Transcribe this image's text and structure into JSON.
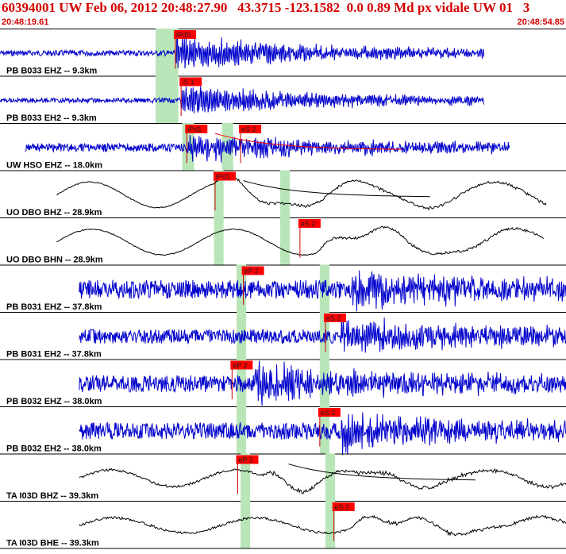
{
  "header": {
    "title": "60394001 UW Feb 06, 2012 20:48:27.90   43.3715 -123.1582  0.0 0.89 Md px vidale UW 01   3",
    "start_time": "20:48:19.61",
    "end_time": "20:48:54.85"
  },
  "colors": {
    "header_text": "#d40000",
    "pick_flag": "#ff0000",
    "window_shade": "#b8e6b8",
    "broadband_trace": "#000000",
    "shortperiod_trace": "#0000cc"
  },
  "traces": [
    {
      "label": "PB B033 EHZ -- 9.3km",
      "kind": "sp",
      "start": 0.0,
      "end": 0.855,
      "onset": 0.31,
      "pick": {
        "text": "iPd0",
        "at": 0.31
      },
      "amp": 0.78,
      "freq": 95,
      "noise": 0.06,
      "shade": [
        0.275,
        0.315
      ]
    },
    {
      "label": "PB B033 EH2 -- 9.3km",
      "kind": "sp",
      "start": 0.0,
      "end": 0.855,
      "onset": 0.32,
      "pick": {
        "text": "iS 1",
        "at": 0.32
      },
      "amp": 0.72,
      "freq": 95,
      "noise": 0.05,
      "shade": [
        0.275,
        0.315
      ]
    },
    {
      "label": "UW HSO EHZ -- 18.0km",
      "kind": "sp",
      "start": 0.045,
      "end": 0.9,
      "onset": 0.33,
      "pick": {
        "text": "iPd1",
        "at": 0.33
      },
      "pick2": {
        "text": "eS 2",
        "at": 0.425
      },
      "amp": 0.55,
      "freq": 70,
      "noise": 0.09,
      "shade": [
        0.322,
        0.343
      ],
      "shade2": [
        0.392,
        0.412
      ],
      "coda": true
    },
    {
      "label": "UO DBO BHZ -- 28.9km",
      "kind": "bb",
      "start": 0.1,
      "end": 0.965,
      "onset": 0.38,
      "pick": {
        "text": "iPd1",
        "at": 0.38
      },
      "amp": 0.85,
      "freq": 4.2,
      "noise": 0.02,
      "shade": [
        0.378,
        0.395
      ],
      "shade2": [
        0.495,
        0.512
      ],
      "coda": true
    },
    {
      "label": "UO DBO BHN -- 28.9km",
      "kind": "bb",
      "start": 0.1,
      "end": 0.96,
      "onset": 0.56,
      "pick": {
        "text": "eS 2",
        "at": 0.53
      },
      "amp": 0.85,
      "freq": 4.0,
      "noise": 0.02,
      "shade": [
        0.378,
        0.395
      ],
      "shade2": [
        0.495,
        0.512
      ]
    },
    {
      "label": "PB B031 EHZ -- 37.8km",
      "kind": "sp",
      "start": 0.14,
      "end": 1.0,
      "onset": 0.62,
      "pick": {
        "text": "eP 2",
        "at": 0.43
      },
      "amp": 0.7,
      "freq": 80,
      "noise": 0.2,
      "shade": [
        0.418,
        0.435
      ],
      "shade2": [
        0.565,
        0.582
      ]
    },
    {
      "label": "PB B031 EH2 -- 37.8km",
      "kind": "sp",
      "start": 0.14,
      "end": 1.0,
      "onset": 0.6,
      "pick": {
        "text": "eS 2",
        "at": 0.575
      },
      "amp": 0.7,
      "freq": 80,
      "noise": 0.15,
      "shade": [
        0.418,
        0.435
      ],
      "shade2": [
        0.565,
        0.582
      ]
    },
    {
      "label": "PB B032 EHZ -- 38.0km",
      "kind": "sp",
      "start": 0.14,
      "end": 1.0,
      "onset": 0.45,
      "pick": {
        "text": "eP 2",
        "at": 0.41
      },
      "amp": 0.75,
      "freq": 80,
      "noise": 0.18,
      "shade": [
        0.418,
        0.435
      ],
      "shade2": [
        0.565,
        0.582
      ]
    },
    {
      "label": "PB B032 EH2 -- 38.0km",
      "kind": "sp",
      "start": 0.14,
      "end": 1.0,
      "onset": 0.6,
      "pick": {
        "text": "eS 2",
        "at": 0.565
      },
      "amp": 0.7,
      "freq": 80,
      "noise": 0.18,
      "shade": [
        0.418,
        0.435
      ],
      "shade2": [
        0.565,
        0.582
      ]
    },
    {
      "label": "TA I03D BHZ -- 39.3km",
      "kind": "bb",
      "start": 0.14,
      "end": 1.0,
      "onset": 0.46,
      "pick": {
        "text": "eP 2",
        "at": 0.42
      },
      "amp": 0.55,
      "freq": 4.5,
      "noise": 0.05,
      "shade": [
        0.425,
        0.442
      ],
      "shade2": [
        0.575,
        0.592
      ],
      "coda": true
    },
    {
      "label": "TA I03D BHE -- 39.3km",
      "kind": "bb",
      "start": 0.14,
      "end": 1.0,
      "onset": 0.62,
      "pick": {
        "text": "eS 2",
        "at": 0.59
      },
      "amp": 0.5,
      "freq": 4.0,
      "noise": 0.05,
      "shade": [
        0.425,
        0.442
      ],
      "shade2": [
        0.575,
        0.592
      ]
    }
  ]
}
